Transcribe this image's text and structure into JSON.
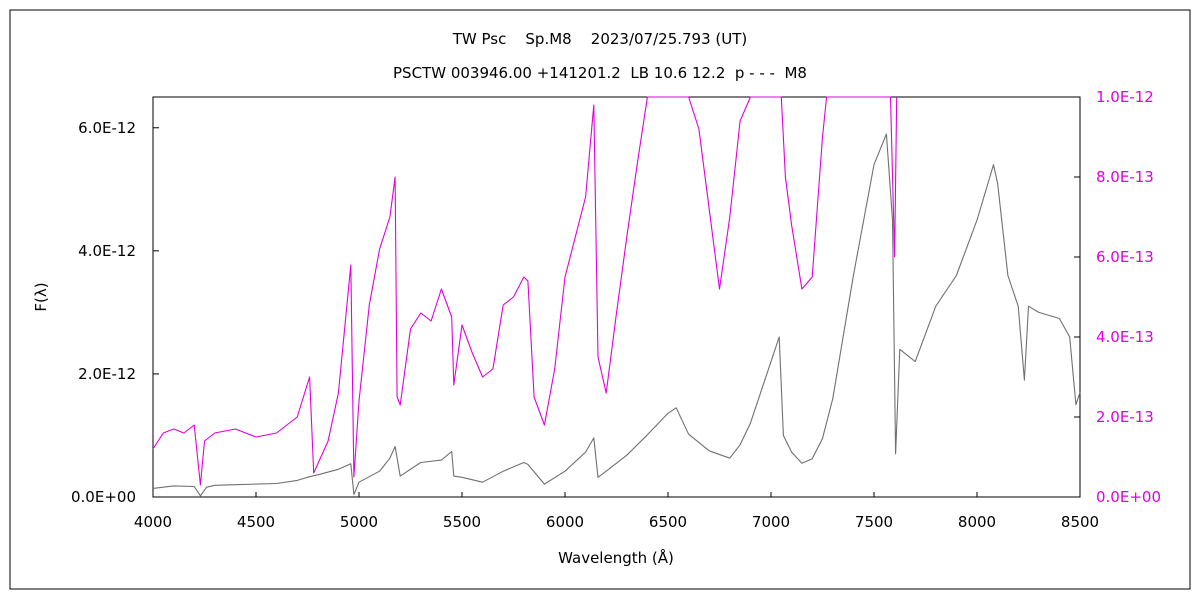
{
  "chart_data": {
    "type": "line",
    "title": "TW Psc    Sp.M8    2023/07/25.793 (UT)",
    "subtitle": "PSCTW 003946.00 +141201.2  LB 10.6 12.2  p - - -  M8",
    "xlabel": "Wavelength (Å)",
    "ylabel": "F(λ)",
    "xlim": [
      4000,
      8500
    ],
    "ylim_left": [
      0,
      6.5e-12
    ],
    "ylim_right": [
      0,
      1e-12
    ],
    "x_ticks": [
      4000,
      4500,
      5000,
      5500,
      6000,
      6500,
      7000,
      7500,
      8000,
      8500
    ],
    "x_tick_labels": [
      "4000",
      "4500",
      "5000",
      "5500",
      "6000",
      "6500",
      "7000",
      "7500",
      "8000",
      "8500"
    ],
    "y_left_ticks": [
      0,
      2e-12,
      4e-12,
      6e-12
    ],
    "y_left_tick_labels": [
      "0.0E+00",
      "2.0E-12",
      "4.0E-12",
      "6.0E-12"
    ],
    "y_right_ticks": [
      0,
      2e-13,
      4e-13,
      6e-13,
      8e-13,
      1e-12
    ],
    "y_right_tick_labels": [
      "0.0E+00",
      "2.0E-13",
      "4.0E-13",
      "6.0E-13",
      "8.0E-13",
      "1.0E-12"
    ],
    "grid": false,
    "series": [
      {
        "axis": "left",
        "color": "#707070",
        "x": [
          4000,
          4100,
          4200,
          4230,
          4260,
          4300,
          4400,
          4500,
          4600,
          4700,
          4760,
          4800,
          4900,
          4960,
          4975,
          5000,
          5100,
          5150,
          5175,
          5200,
          5300,
          5400,
          5450,
          5460,
          5500,
          5600,
          5700,
          5800,
          5820,
          5900,
          6000,
          6100,
          6140,
          6160,
          6200,
          6300,
          6400,
          6500,
          6540,
          6600,
          6700,
          6800,
          6850,
          6900,
          7000,
          7040,
          7060,
          7100,
          7150,
          7200,
          7250,
          7300,
          7400,
          7500,
          7560,
          7590,
          7605,
          7625,
          7700,
          7800,
          7900,
          8000,
          8080,
          8100,
          8150,
          8200,
          8230,
          8250,
          8300,
          8400,
          8450,
          8480,
          8500
        ],
        "y": [
          1.4e-13,
          1.8e-13,
          1.7e-13,
          2e-14,
          1.6e-13,
          1.9e-13,
          2e-13,
          2.1e-13,
          2.2e-13,
          2.7e-13,
          3.3e-13,
          3.6e-13,
          4.5e-13,
          5.4e-13,
          4e-14,
          2.4e-13,
          4.2e-13,
          6.3e-13,
          8.2e-13,
          3.4e-13,
          5.6e-13,
          6e-13,
          7.4e-13,
          3.4e-13,
          3.2e-13,
          2.4e-13,
          4.2e-13,
          5.6e-13,
          5.3e-13,
          2.1e-13,
          4.2e-13,
          7.3e-13,
          9.6e-13,
          3.2e-13,
          4.2e-13,
          6.8e-13,
          1.01e-12,
          1.36e-12,
          1.45e-12,
          1.02e-12,
          7.5e-13,
          6.3e-13,
          8.5e-13,
          1.2e-12,
          2.2e-12,
          2.6e-12,
          1e-12,
          7.3e-13,
          5.5e-13,
          6.2e-13,
          9.5e-13,
          1.6e-12,
          3.6e-12,
          5.4e-12,
          5.9e-12,
          4.5e-12,
          7e-13,
          2.4e-12,
          2.2e-12,
          3.1e-12,
          3.6e-12,
          4.5e-12,
          5.4e-12,
          5.1e-12,
          3.6e-12,
          3.1e-12,
          1.9e-12,
          3.1e-12,
          3e-12,
          2.9e-12,
          2.6e-12,
          1.5e-12,
          1.7e-12
        ]
      },
      {
        "axis": "right",
        "color": "#e000e0",
        "x": [
          4000,
          4050,
          4100,
          4150,
          4200,
          4230,
          4250,
          4300,
          4400,
          4500,
          4600,
          4700,
          4760,
          4780,
          4850,
          4900,
          4960,
          4975,
          5000,
          5050,
          5100,
          5150,
          5175,
          5185,
          5200,
          5250,
          5300,
          5350,
          5400,
          5450,
          5460,
          5500,
          5550,
          5600,
          5650,
          5700,
          5750,
          5800,
          5820,
          5850,
          5900,
          5950,
          6000,
          6050,
          6100,
          6140,
          6160,
          6200,
          6250,
          6300,
          6350,
          6400,
          6450,
          6500,
          6550,
          6600,
          6650,
          6700,
          6750,
          6800,
          6850,
          6900,
          6950,
          7000,
          7050,
          7070,
          7100,
          7150,
          7200,
          7250,
          7270,
          7300,
          7400,
          7500,
          7580,
          7600,
          7610
        ],
        "y": [
          1.2e-13,
          1.6e-13,
          1.7e-13,
          1.6e-13,
          1.8e-13,
          3e-14,
          1.4e-13,
          1.6e-13,
          1.7e-13,
          1.5e-13,
          1.6e-13,
          2e-13,
          3e-13,
          6e-14,
          1.4e-13,
          2.6e-13,
          5.8e-13,
          5e-14,
          2.4e-13,
          4.8e-13,
          6.2e-13,
          7e-13,
          8e-13,
          2.5e-13,
          2.3e-13,
          4.2e-13,
          4.6e-13,
          4.4e-13,
          5.2e-13,
          4.5e-13,
          2.8e-13,
          4.3e-13,
          3.6e-13,
          3e-13,
          3.2e-13,
          4.8e-13,
          5e-13,
          5.5e-13,
          5.4e-13,
          2.5e-13,
          1.8e-13,
          3.2e-13,
          5.5e-13,
          6.5e-13,
          7.5e-13,
          9.8e-13,
          3.5e-13,
          2.6e-13,
          4.6e-13,
          6.5e-13,
          8.3e-13,
          1.02e-12,
          1.02e-12,
          1.02e-12,
          1.02e-12,
          1.02e-12,
          9.2e-13,
          7.2e-13,
          5.2e-13,
          7e-13,
          9.4e-13,
          1.02e-12,
          1.02e-12,
          1.02e-12,
          1.02e-12,
          8e-13,
          6.8e-13,
          5.2e-13,
          5.5e-13,
          9e-13,
          1.02e-12,
          1.02e-12,
          1.02e-12,
          1.02e-12,
          1.02e-12,
          6e-13,
          1.02e-12
        ]
      }
    ]
  }
}
